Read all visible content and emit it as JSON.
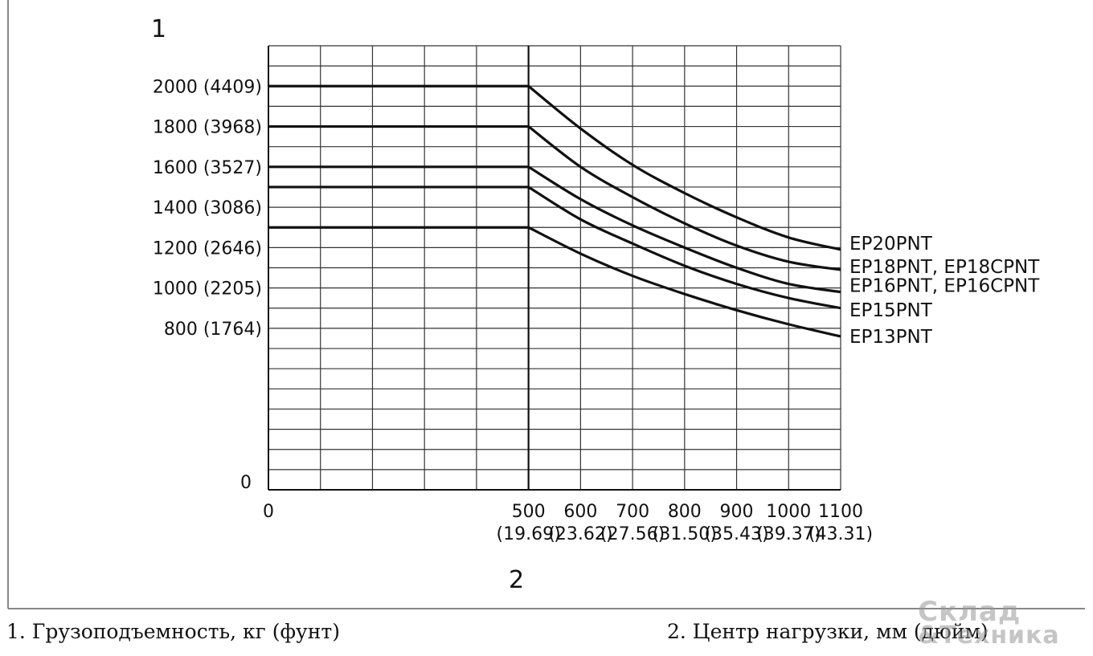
{
  "chart_data": {
    "type": "line",
    "y_axis_number": "1",
    "x_axis_number": "2",
    "x_ticks": [
      {
        "value": 0,
        "label": "0",
        "sub": ""
      },
      {
        "value": 500,
        "label": "500",
        "sub": "(19.69)"
      },
      {
        "value": 600,
        "label": "600",
        "sub": "(23.62)"
      },
      {
        "value": 700,
        "label": "700",
        "sub": "(27.56)"
      },
      {
        "value": 800,
        "label": "800",
        "sub": "(31.50)"
      },
      {
        "value": 900,
        "label": "900",
        "sub": "(35.43)"
      },
      {
        "value": 1000,
        "label": "1000",
        "sub": "(39.37)"
      },
      {
        "value": 1100,
        "label": "1100",
        "sub": "(43.31)"
      }
    ],
    "y_ticks": [
      {
        "value": 0,
        "label": "0"
      },
      {
        "value": 800,
        "label": "800 (1764)"
      },
      {
        "value": 1000,
        "label": "1000 (2205)"
      },
      {
        "value": 1200,
        "label": "1200 (2646)"
      },
      {
        "value": 1400,
        "label": "1400 (3086)"
      },
      {
        "value": 1600,
        "label": "1600 (3527)"
      },
      {
        "value": 1800,
        "label": "1800 (3968)"
      },
      {
        "value": 2000,
        "label": "2000 (4409)"
      }
    ],
    "xlim": [
      0,
      1100
    ],
    "ylim": [
      0,
      2200
    ],
    "grid": true,
    "series": [
      {
        "name": "EP20PNT",
        "x": [
          0,
          500,
          600,
          700,
          800,
          900,
          1000,
          1100
        ],
        "y": [
          2000,
          2000,
          1790,
          1610,
          1470,
          1350,
          1250,
          1190
        ]
      },
      {
        "name": "EP18PNT, EP18CPNT",
        "x": [
          0,
          500,
          600,
          700,
          800,
          900,
          1000,
          1100
        ],
        "y": [
          1800,
          1800,
          1600,
          1450,
          1320,
          1210,
          1130,
          1090
        ]
      },
      {
        "name": "EP16PNT, EP16CPNT",
        "x": [
          0,
          500,
          600,
          700,
          800,
          900,
          1000,
          1100
        ],
        "y": [
          1600,
          1600,
          1440,
          1310,
          1200,
          1100,
          1020,
          980
        ]
      },
      {
        "name": "EP15PNT",
        "x": [
          0,
          500,
          600,
          700,
          800,
          900,
          1000,
          1100
        ],
        "y": [
          1500,
          1500,
          1340,
          1220,
          1110,
          1020,
          950,
          900
        ]
      },
      {
        "name": "EP13PNT",
        "x": [
          0,
          500,
          600,
          700,
          800,
          900,
          1000,
          1100
        ],
        "y": [
          1300,
          1300,
          1170,
          1060,
          970,
          890,
          820,
          760
        ]
      }
    ]
  },
  "captions": {
    "y_axis": "1. Грузоподъемность, кг (фунт)",
    "x_axis": "2. Центр нагрузки, мм (дюйм)"
  },
  "watermark": {
    "line1": "Склад",
    "line2": "&Техника"
  }
}
